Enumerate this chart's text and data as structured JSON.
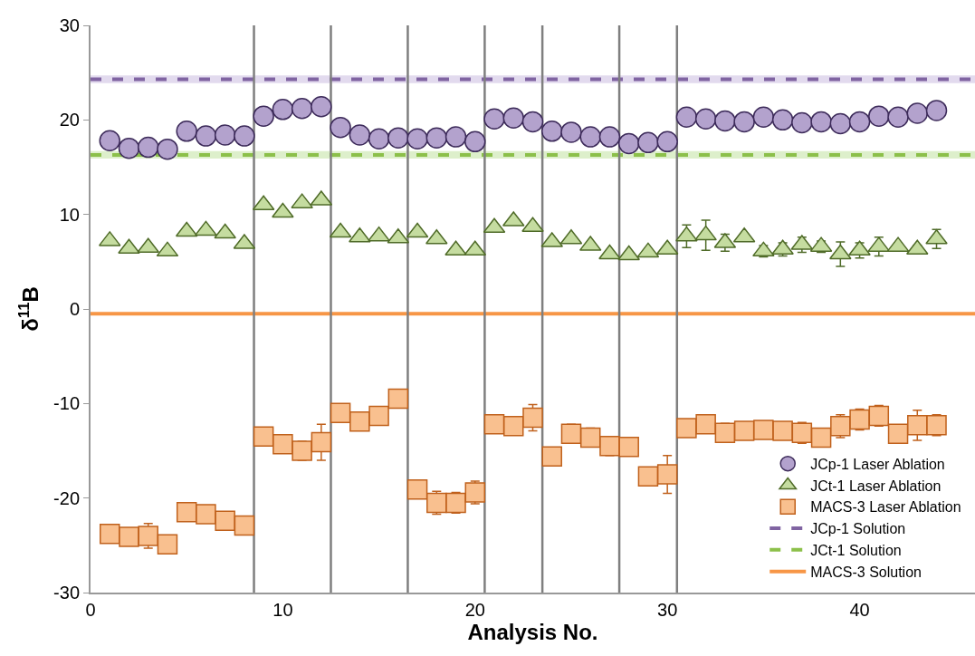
{
  "chart_data": {
    "type": "scatter",
    "xlabel": "Analysis No.",
    "ylabel": "δ$^{11}$B",
    "x": [
      1,
      2,
      3,
      4,
      5,
      6,
      7,
      8,
      9,
      10,
      11,
      12,
      13,
      14,
      15,
      16,
      17,
      18,
      19,
      20,
      21,
      22,
      23,
      24,
      25,
      26,
      27,
      28,
      29,
      30,
      31,
      32,
      33,
      34,
      35,
      36,
      37,
      38,
      39,
      40,
      41,
      42,
      43,
      44
    ],
    "xlim": [
      0,
      46
    ],
    "xticks": [
      0,
      10,
      20,
      30,
      40
    ],
    "ylim": [
      -30,
      30
    ],
    "yticks": [
      -30,
      -20,
      -10,
      0,
      10,
      20,
      30
    ],
    "grid": false,
    "legend": "bottom right",
    "series": [
      {
        "name": "JCp-1 Laser Ablation",
        "color": "#b3a2cd",
        "marker": "circle",
        "values": [
          17.8,
          17,
          17.1,
          16.9,
          18.8,
          18.3,
          18.4,
          18.3,
          20.4,
          21.1,
          21.2,
          21.4,
          19.2,
          18.4,
          18,
          18.1,
          18,
          18.1,
          18.2,
          17.7,
          20.1,
          20.2,
          19.8,
          18.8,
          18.7,
          18.2,
          18.2,
          17.5,
          17.6,
          17.7,
          20.3,
          20.1,
          19.9,
          19.8,
          20.3,
          20,
          19.7,
          19.8,
          19.6,
          19.8,
          20.4,
          20.3,
          20.7,
          21
        ]
      },
      {
        "name": "JCt-1 Laser Ablation",
        "color": "#c5dca0",
        "marker": "triangle",
        "values": [
          7.2,
          6.4,
          6.5,
          6.1,
          8.2,
          8.3,
          8,
          6.9,
          11,
          10.2,
          11.2,
          11.5,
          8.1,
          7.6,
          7.7,
          7.5,
          8.1,
          7.4,
          6.2,
          6.2,
          8.6,
          9.3,
          8.7,
          7.1,
          7.4,
          6.7,
          5.8,
          5.7,
          6,
          6.3,
          7.7,
          7.8,
          7,
          7.6,
          6.1,
          6.3,
          6.8,
          6.6,
          5.8,
          6.2,
          6.6,
          6.6,
          6.3,
          7.4
        ],
        "errors": [
          null,
          null,
          null,
          null,
          null,
          null,
          null,
          null,
          null,
          null,
          null,
          null,
          null,
          null,
          null,
          null,
          null,
          null,
          null,
          null,
          null,
          null,
          null,
          null,
          null,
          null,
          null,
          null,
          null,
          null,
          1.2,
          1.6,
          0.9,
          0.3,
          0.6,
          0.7,
          0.8,
          0.6,
          1.3,
          0.8,
          1,
          0.4,
          0.4,
          1
        ]
      },
      {
        "name": "MACS-3 Laser Ablation",
        "color": "#f9c08f",
        "marker": "square",
        "values": [
          -23.8,
          -24.1,
          -24,
          -24.9,
          -21.5,
          -21.7,
          -22.4,
          -22.9,
          -13.5,
          -14.3,
          -15,
          -14.1,
          -11,
          -11.9,
          -11.3,
          -9.5,
          -19.1,
          -20.5,
          -20.5,
          -19.4,
          -12.2,
          -12.4,
          -11.5,
          -15.6,
          -13.2,
          -13.6,
          -14.5,
          -14.6,
          -17.7,
          -17.5,
          -12.6,
          -12.2,
          -13.1,
          -12.9,
          -12.8,
          -12.9,
          -13.1,
          -13.6,
          -12.4,
          -11.7,
          -11.3,
          -13.2,
          -12.3,
          -12.3
        ],
        "errors": [
          null,
          0.9,
          1.3,
          null,
          null,
          null,
          null,
          null,
          null,
          0.8,
          1,
          1.9,
          null,
          null,
          null,
          null,
          null,
          1.2,
          1.1,
          1.2,
          null,
          null,
          1.4,
          null,
          1,
          1,
          1,
          null,
          null,
          2,
          null,
          null,
          1,
          null,
          null,
          0.8,
          1.1,
          0.9,
          1.2,
          1.1,
          1.1,
          0.8,
          1.6,
          1.1
        ]
      }
    ],
    "ref_lines": [
      {
        "axis": "y",
        "value": 24.3,
        "label": "JCp-1 Solution",
        "color": "#8064a2",
        "line_style": "dashed"
      },
      {
        "axis": "y",
        "value": 16.3,
        "label": "JCt-1 Solution",
        "color": "#8cc04a",
        "line_style": "dashed"
      },
      {
        "axis": "y",
        "value": -0.5,
        "label": "MACS-3 Solution",
        "color": "#f79646",
        "line_style": "solid"
      },
      {
        "axis": "x",
        "value": 8.5,
        "color": "#7f7f7f"
      },
      {
        "axis": "x",
        "value": 12.5,
        "color": "#7f7f7f"
      },
      {
        "axis": "x",
        "value": 16.5,
        "color": "#7f7f7f"
      },
      {
        "axis": "x",
        "value": 20.5,
        "color": "#7f7f7f"
      },
      {
        "axis": "x",
        "value": 23.5,
        "color": "#7f7f7f"
      },
      {
        "axis": "x",
        "value": 27.5,
        "color": "#7f7f7f"
      },
      {
        "axis": "x",
        "value": 30.5,
        "color": "#7f7f7f"
      }
    ],
    "bands": [
      {
        "axis": "y",
        "from": 23.9,
        "to": 24.7,
        "color": "#e2daee"
      },
      {
        "axis": "y",
        "from": 15.9,
        "to": 16.7,
        "color": "#ddefcb"
      }
    ]
  }
}
